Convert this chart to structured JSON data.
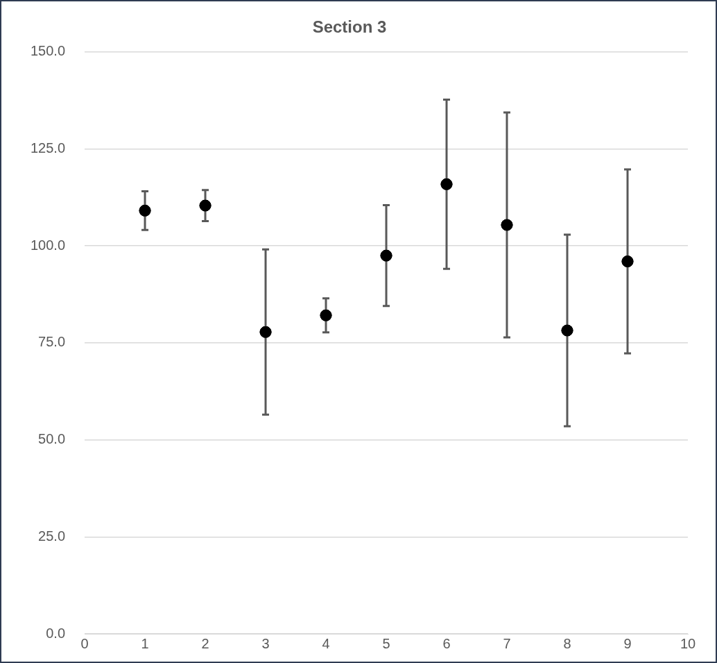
{
  "chart_data": {
    "type": "scatter",
    "title": "Section 3",
    "x": [
      1,
      2,
      3,
      4,
      5,
      6,
      7,
      8,
      9
    ],
    "series": [
      {
        "color": "#000000",
        "values": [
          109.1,
          110.4,
          77.8,
          82.1,
          97.5,
          115.9,
          105.4,
          78.2,
          96.0
        ],
        "errors": [
          5,
          4,
          21.3,
          4.4,
          13,
          21.8,
          29,
          24.7,
          23.7
        ]
      }
    ],
    "xlim": [
      0,
      10
    ],
    "xticks": [
      0,
      1,
      2,
      3,
      4,
      5,
      6,
      7,
      8,
      9,
      10
    ],
    "ylim": [
      0,
      150
    ],
    "yticks": [
      {
        "value": 0,
        "label": "0.0"
      },
      {
        "value": 25,
        "label": "25.0"
      },
      {
        "value": 50,
        "label": "50.0"
      },
      {
        "value": 75,
        "label": "75.0"
      },
      {
        "value": 100,
        "label": "100.0"
      },
      {
        "value": 125,
        "label": "125.0"
      },
      {
        "value": 150,
        "label": "150.0"
      }
    ],
    "grid": "y",
    "legend": false,
    "marker": "circle"
  }
}
